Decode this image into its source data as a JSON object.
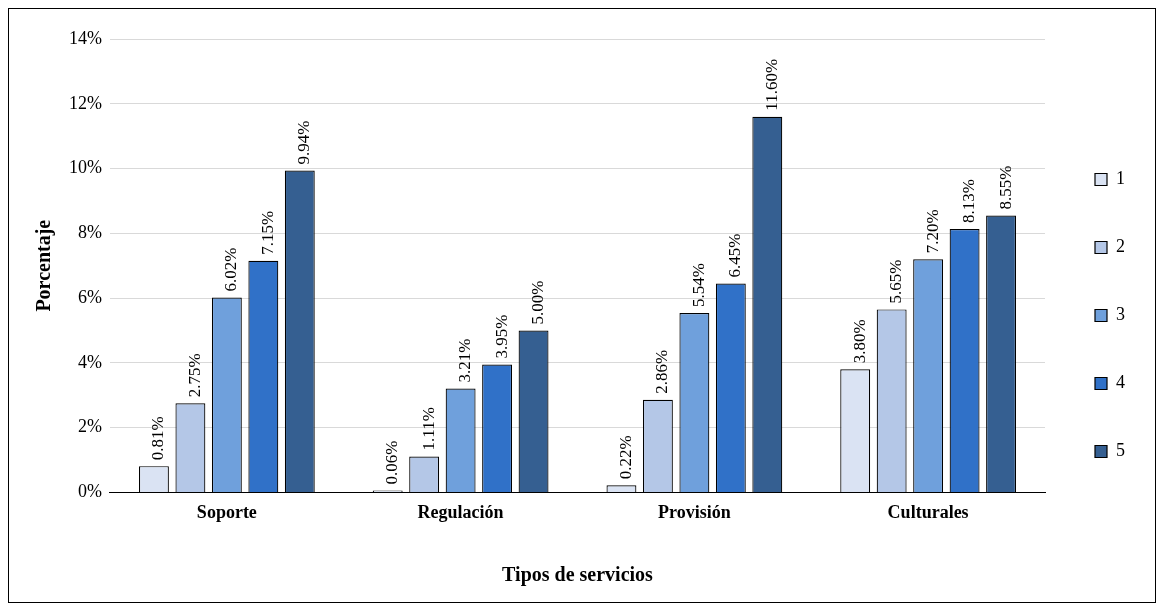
{
  "chart_data": {
    "type": "bar",
    "xlabel": "Tipos de servicios",
    "ylabel": "Porcentaje",
    "categories": [
      "Soporte",
      "Regulación",
      "Provisión",
      "Culturales"
    ],
    "series": [
      {
        "name": "1",
        "color": "#dae3f3",
        "values": [
          0.81,
          0.06,
          0.22,
          3.8
        ],
        "value_labels": [
          "0.81%",
          "0.06%",
          "0.22%",
          "3.80%"
        ]
      },
      {
        "name": "2",
        "color": "#b4c7e7",
        "values": [
          2.75,
          1.11,
          2.86,
          5.65
        ],
        "value_labels": [
          "2.75%",
          "1.11%",
          "2.86%",
          "5.65%"
        ]
      },
      {
        "name": "3",
        "color": "#6fa0dc",
        "values": [
          6.02,
          3.21,
          5.54,
          7.2
        ],
        "value_labels": [
          "6.02%",
          "3.21%",
          "5.54%",
          "7.20%"
        ]
      },
      {
        "name": "4",
        "color": "#3071c8",
        "values": [
          7.15,
          3.95,
          6.45,
          8.13
        ],
        "value_labels": [
          "7.15%",
          "3.95%",
          "6.45%",
          "8.13%"
        ]
      },
      {
        "name": "5",
        "color": "#355f91",
        "values": [
          9.94,
          5.0,
          11.6,
          8.55
        ],
        "value_labels": [
          "9.94%",
          "5.00%",
          "11.60%",
          "8.55%"
        ]
      }
    ],
    "ylim": [
      0,
      14
    ],
    "yticks": [
      {
        "value": 0,
        "label": "0%"
      },
      {
        "value": 2,
        "label": "2%"
      },
      {
        "value": 4,
        "label": "4%"
      },
      {
        "value": 6,
        "label": "6%"
      },
      {
        "value": 8,
        "label": "8%"
      },
      {
        "value": 10,
        "label": "10%"
      },
      {
        "value": 12,
        "label": "12%"
      },
      {
        "value": 14,
        "label": "14%"
      }
    ],
    "grid": "y",
    "legend": "right"
  }
}
